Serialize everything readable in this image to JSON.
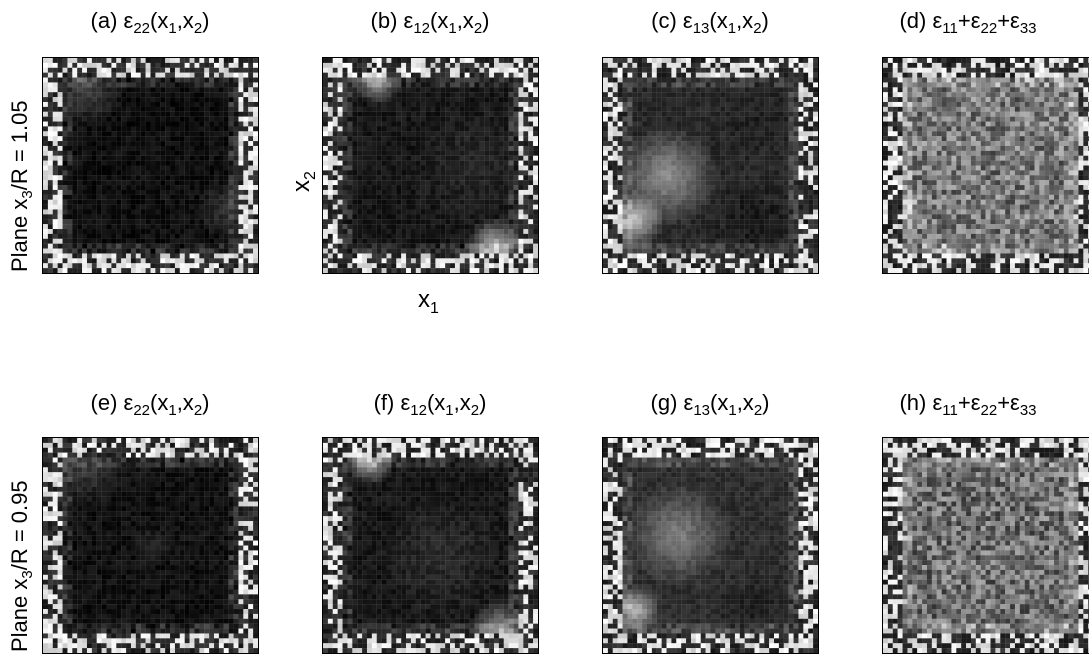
{
  "figure": {
    "rows": [
      {
        "label": "Plane x3/R = 1.05",
        "panels": [
          {
            "id": "a",
            "title": "(a) ε22(x1,x2)"
          },
          {
            "id": "b",
            "title": "(b) ε12(x1,x2)"
          },
          {
            "id": "c",
            "title": "(c) ε13(x1,x2)"
          },
          {
            "id": "d",
            "title": "(d) ε11+ε22+ε33"
          }
        ]
      },
      {
        "label": "Plane x3/R = 0.95",
        "panels": [
          {
            "id": "e",
            "title": "(e) ε22(x1,x2)"
          },
          {
            "id": "f",
            "title": "(f) ε12(x1,x2)"
          },
          {
            "id": "g",
            "title": "(g) ε13(x1,x2)"
          },
          {
            "id": "h",
            "title": "(h) ε11+ε22+ε33"
          }
        ]
      }
    ],
    "axes": {
      "x_label": "x1",
      "y_label": "x2"
    }
  }
}
